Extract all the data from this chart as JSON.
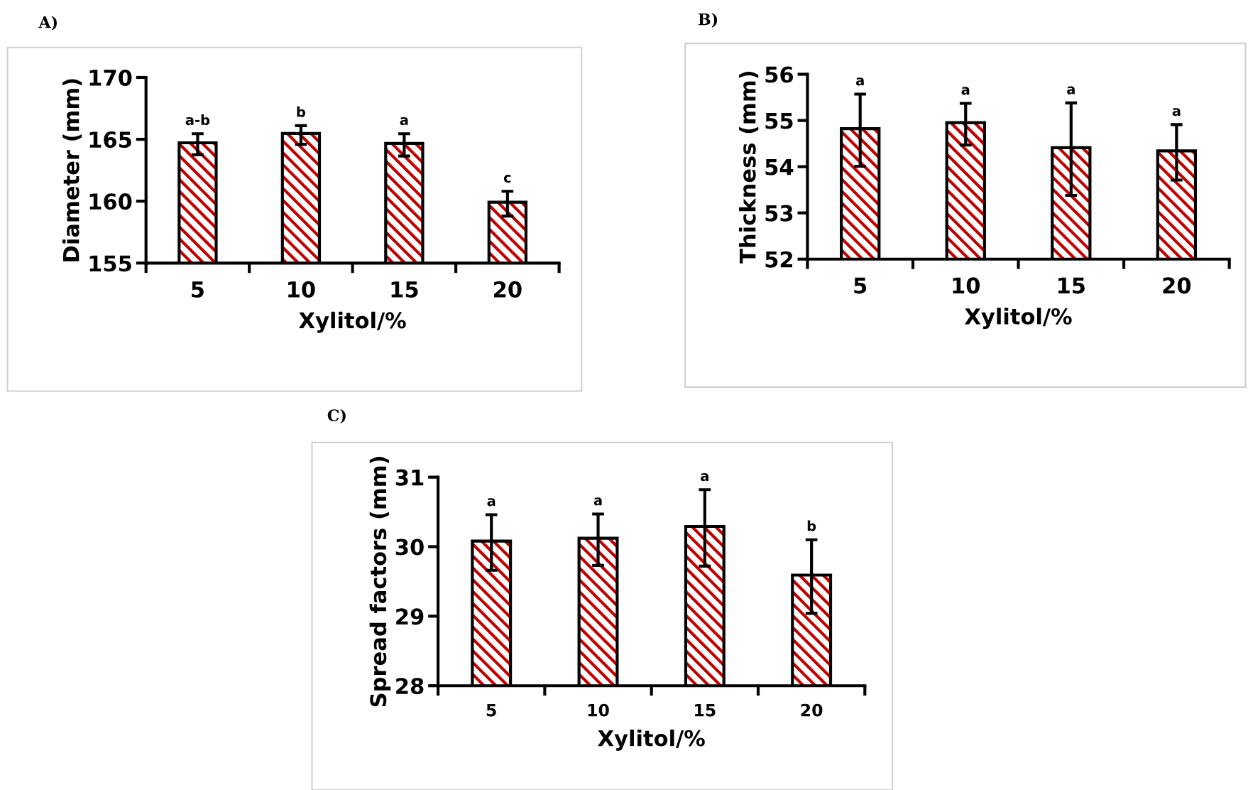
{
  "chart_data": [
    {
      "type": "bar",
      "title": "A)",
      "xlabel": "Xylitol/%",
      "ylabel": "Diameter (mm)",
      "categories": [
        "5",
        "10",
        "15",
        "20"
      ],
      "values": [
        164.6,
        165.35,
        164.55,
        159.8
      ],
      "errors": [
        0.85,
        0.75,
        0.9,
        1.0
      ],
      "color": "#c00000",
      "ylim": [
        155,
        170
      ],
      "yticks": [
        155,
        160,
        165,
        170
      ],
      "grid": false,
      "legend": false,
      "annotations": [
        {
          "text": "a-b",
          "x": "5",
          "y": 165.45
        },
        {
          "text": "b",
          "x": "10",
          "y": 166.1
        },
        {
          "text": "a",
          "x": "15",
          "y": 165.45
        },
        {
          "text": "c",
          "x": "20",
          "y": 160.8
        }
      ]
    },
    {
      "type": "bar",
      "title": "B)",
      "xlabel": "Xylitol/%",
      "ylabel": "Thickness (mm)",
      "categories": [
        "5",
        "10",
        "15",
        "20"
      ],
      "values": [
        54.79,
        54.92,
        54.38,
        54.31
      ],
      "errors": [
        0.78,
        0.45,
        1.0,
        0.6
      ],
      "color": "#c00000",
      "ylim": [
        52,
        56
      ],
      "yticks": [
        52,
        53,
        54,
        55,
        56
      ],
      "grid": false,
      "legend": false,
      "annotations": [
        {
          "text": "a",
          "x": "5",
          "y": 55.57
        },
        {
          "text": "a",
          "x": "10",
          "y": 55.37
        },
        {
          "text": "a",
          "x": "15",
          "y": 55.38
        },
        {
          "text": "a",
          "x": "20",
          "y": 54.91
        }
      ]
    },
    {
      "type": "bar",
      "title": "C)",
      "xlabel": "Xylitol/%",
      "ylabel": "Spread factors (mm)",
      "categories": [
        "5",
        "10",
        "15",
        "20"
      ],
      "values": [
        30.06,
        30.1,
        30.27,
        29.57
      ],
      "errors": [
        0.4,
        0.37,
        0.55,
        0.53
      ],
      "color": "#c00000",
      "ylim": [
        28,
        31
      ],
      "yticks": [
        28,
        29,
        30,
        31
      ],
      "grid": false,
      "legend": false,
      "annotations": [
        {
          "text": "a",
          "x": "5",
          "y": 30.46
        },
        {
          "text": "a",
          "x": "10",
          "y": 30.47
        },
        {
          "text": "a",
          "x": "15",
          "y": 30.82
        },
        {
          "text": "b",
          "x": "20",
          "y": 30.1
        }
      ]
    }
  ]
}
